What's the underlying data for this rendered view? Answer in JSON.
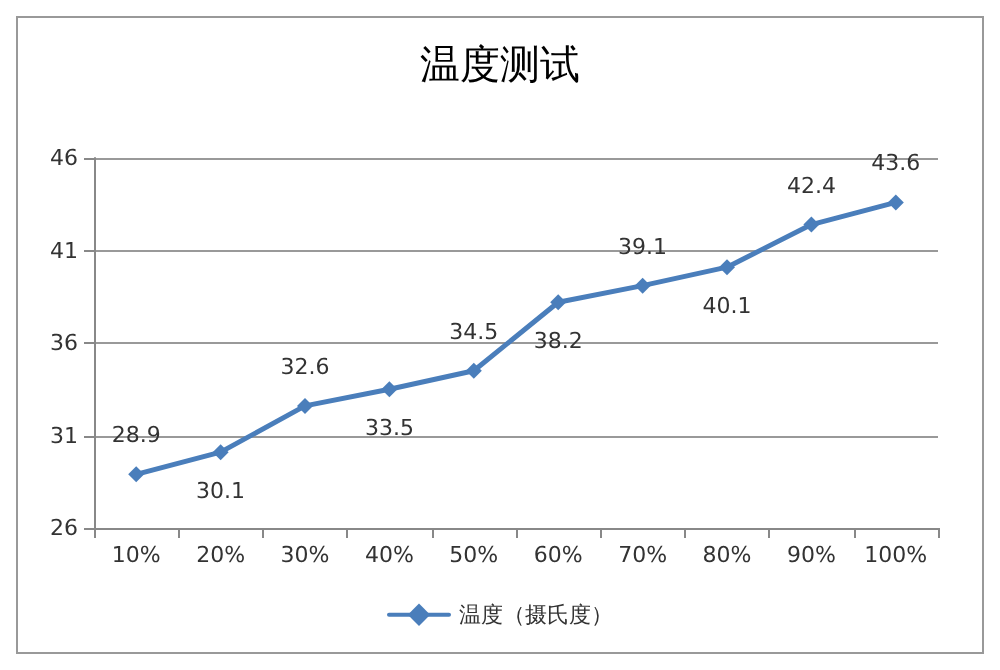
{
  "chart_data": {
    "type": "line",
    "title": "温度测试",
    "categories": [
      "10%",
      "20%",
      "30%",
      "40%",
      "50%",
      "60%",
      "70%",
      "80%",
      "90%",
      "100%"
    ],
    "series": [
      {
        "name": "温度（摄氏度）",
        "color": "#4a7ebb",
        "values": [
          28.9,
          30.1,
          32.6,
          33.5,
          34.5,
          38.2,
          39.1,
          40.1,
          42.4,
          43.6
        ]
      }
    ],
    "ylim": [
      26,
      46
    ],
    "yticks": [
      26,
      31,
      36,
      41,
      46
    ],
    "grid": "y",
    "legend": "bottom",
    "marker": "diamond",
    "line_style": "solid",
    "data_labels": true
  }
}
